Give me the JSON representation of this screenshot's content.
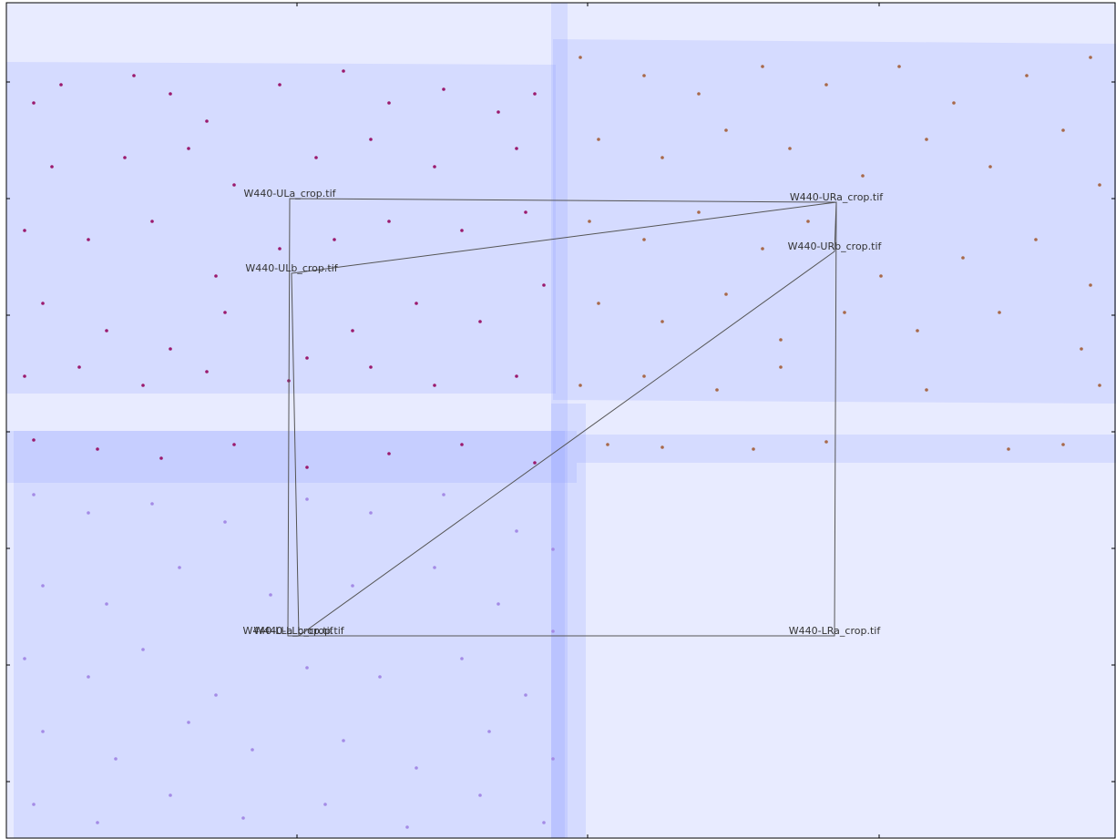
{
  "chart_data": {
    "type": "scatter",
    "xlim": [
      0,
      1218
    ],
    "ylim": [
      917,
      0
    ],
    "xticks": [
      319,
      638,
      958
    ],
    "yticks": [
      87,
      215,
      343,
      471,
      599,
      727,
      855
    ],
    "footprint_color": "#8a9cff",
    "footprints": [
      {
        "x": [
          0,
          1218,
          1218,
          0
        ],
        "y": [
          0,
          0,
          917,
          917
        ]
      },
      {
        "x": [
          0,
          603,
          603,
          0
        ],
        "y": [
          65,
          68,
          429,
          429
        ]
      },
      {
        "x": [
          600,
          1218,
          1218,
          600
        ],
        "y": [
          40,
          45,
          440,
          436
        ]
      },
      {
        "x": [
          0,
          626,
          626,
          0
        ],
        "y": [
          470,
          470,
          527,
          527
        ]
      },
      {
        "x": [
          626,
          1218,
          1218,
          626
        ],
        "y": [
          474,
          474,
          505,
          505
        ]
      },
      {
        "x": [
          8,
          613,
          613,
          8
        ],
        "y": [
          470,
          470,
          917,
          917
        ]
      },
      {
        "x": [
          598,
          616,
          616,
          598
        ],
        "y": [
          0,
          0,
          917,
          917
        ]
      },
      {
        "x": [
          598,
          636,
          636,
          598
        ],
        "y": [
          440,
          440,
          917,
          917
        ]
      }
    ],
    "series": [
      {
        "color": "#9b1a6e",
        "x": [
          30,
          60,
          140,
          180,
          220,
          300,
          370,
          420,
          480,
          540,
          580,
          50,
          130,
          200,
          250,
          340,
          400,
          470,
          560,
          20,
          90,
          160,
          230,
          300,
          360,
          420,
          500,
          570,
          40,
          110,
          180,
          240,
          330,
          380,
          450,
          520,
          590,
          20,
          80,
          150,
          220,
          310,
          400,
          470,
          560,
          30,
          100,
          170,
          250,
          330,
          420,
          500,
          580
        ],
        "values": [
          110,
          90,
          80,
          100,
          130,
          90,
          75,
          110,
          95,
          120,
          100,
          180,
          170,
          160,
          200,
          170,
          150,
          180,
          160,
          250,
          260,
          240,
          300,
          270,
          260,
          240,
          250,
          230,
          330,
          360,
          380,
          340,
          390,
          360,
          330,
          350,
          310,
          410,
          400,
          420,
          405,
          415,
          400,
          420,
          410,
          480,
          490,
          500,
          485,
          510,
          495,
          485,
          505
        ]
      },
      {
        "color": "#a8694a",
        "x": [
          630,
          700,
          760,
          830,
          900,
          980,
          1040,
          1120,
          1190,
          650,
          720,
          790,
          860,
          940,
          1010,
          1080,
          1160,
          1200,
          640,
          700,
          760,
          830,
          880,
          960,
          1050,
          1130,
          1190,
          650,
          720,
          790,
          850,
          920,
          1000,
          1090,
          1180,
          630,
          700,
          780,
          850,
          1010,
          1200,
          660,
          720,
          820,
          900,
          1100,
          1160
        ],
        "values": [
          60,
          80,
          100,
          70,
          90,
          70,
          110,
          80,
          60,
          150,
          170,
          140,
          160,
          190,
          150,
          180,
          140,
          200,
          240,
          260,
          230,
          270,
          240,
          300,
          280,
          260,
          310,
          330,
          350,
          320,
          370,
          340,
          360,
          340,
          380,
          420,
          410,
          425,
          400,
          425,
          420,
          485,
          488,
          490,
          482,
          490,
          485
        ]
      },
      {
        "color": "#a48be6",
        "x": [
          30,
          90,
          160,
          240,
          330,
          400,
          480,
          560,
          600,
          40,
          110,
          190,
          290,
          380,
          470,
          540,
          600,
          20,
          90,
          150,
          230,
          330,
          410,
          500,
          570,
          40,
          120,
          200,
          270,
          370,
          450,
          530,
          600,
          30,
          100,
          180,
          260,
          350,
          440,
          520,
          590
        ],
        "values": [
          540,
          560,
          550,
          570,
          545,
          560,
          540,
          580,
          600,
          640,
          660,
          620,
          650,
          640,
          620,
          660,
          690,
          720,
          740,
          710,
          760,
          730,
          740,
          720,
          760,
          800,
          830,
          790,
          820,
          810,
          840,
          800,
          830,
          880,
          900,
          870,
          895,
          880,
          905,
          870,
          900
        ]
      }
    ],
    "outlines": [
      {
        "x": [
          311,
          911,
          909,
          309
        ],
        "y": [
          215,
          219,
          695,
          695
        ]
      },
      {
        "x": [
          313,
          911,
          909,
          321
        ],
        "y": [
          297,
          219,
          273,
          695
        ]
      }
    ],
    "labels": [
      {
        "text": "W440-ULa_crop.tif",
        "x": 311,
        "y": 215
      },
      {
        "text": "W440-URa_crop.tif",
        "x": 911,
        "y": 219
      },
      {
        "text": "W440-ULb_crop.tif",
        "x": 313,
        "y": 297
      },
      {
        "text": "W440-URb_crop.tif",
        "x": 909,
        "y": 273
      },
      {
        "text": "W440-LLa_crop.tif",
        "x": 309,
        "y": 695
      },
      {
        "text": "W440-LLb_crop.tif",
        "x": 321,
        "y": 695
      },
      {
        "text": "W440-LRa_crop.tif",
        "x": 909,
        "y": 695
      }
    ]
  }
}
